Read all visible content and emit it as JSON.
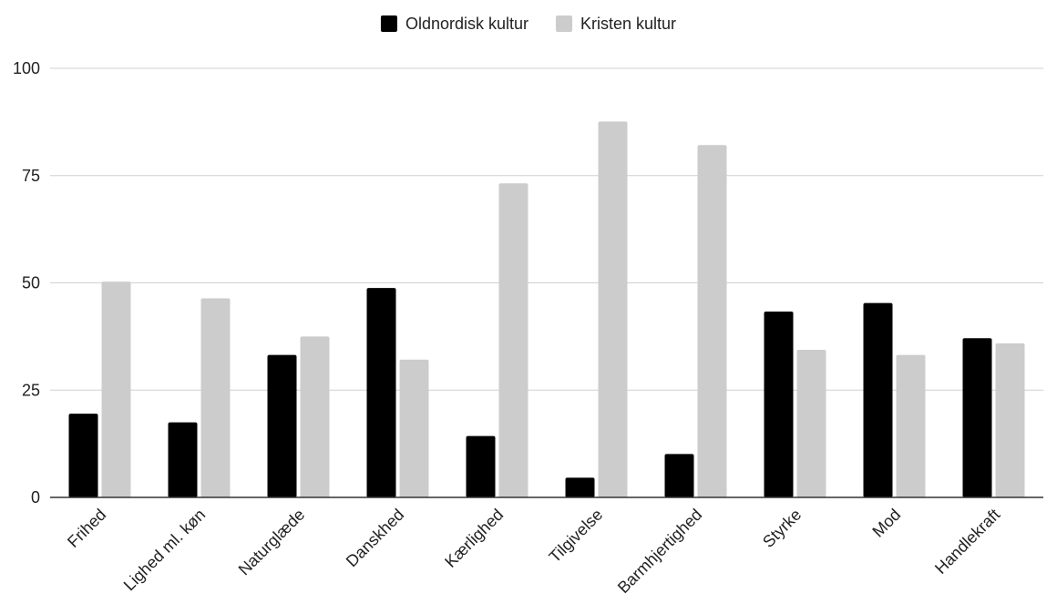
{
  "chart_data": {
    "type": "bar",
    "title": "",
    "xlabel": "",
    "ylabel": "",
    "ylim": [
      0,
      100
    ],
    "yticks": [
      0,
      25,
      50,
      75,
      100
    ],
    "grid": true,
    "legend_position": "top-center",
    "categories": [
      "Frihed",
      "Lighed ml. køn",
      "Naturglæde",
      "Danskhed",
      "Kærlighed",
      "Tilgivelse",
      "Barmhjertighed",
      "Styrke",
      "Mod",
      "Handlekraft"
    ],
    "series": [
      {
        "name": "Oldnordisk kultur",
        "color": "#000000",
        "values": [
          19.5,
          17.5,
          33.2,
          48.8,
          14.3,
          4.6,
          10.1,
          43.3,
          45.3,
          37.1
        ]
      },
      {
        "name": "Kristen kultur",
        "color": "#cccccc",
        "values": [
          50.3,
          46.4,
          37.5,
          32.1,
          73.2,
          87.6,
          82.1,
          34.4,
          33.2,
          35.9
        ]
      }
    ]
  }
}
